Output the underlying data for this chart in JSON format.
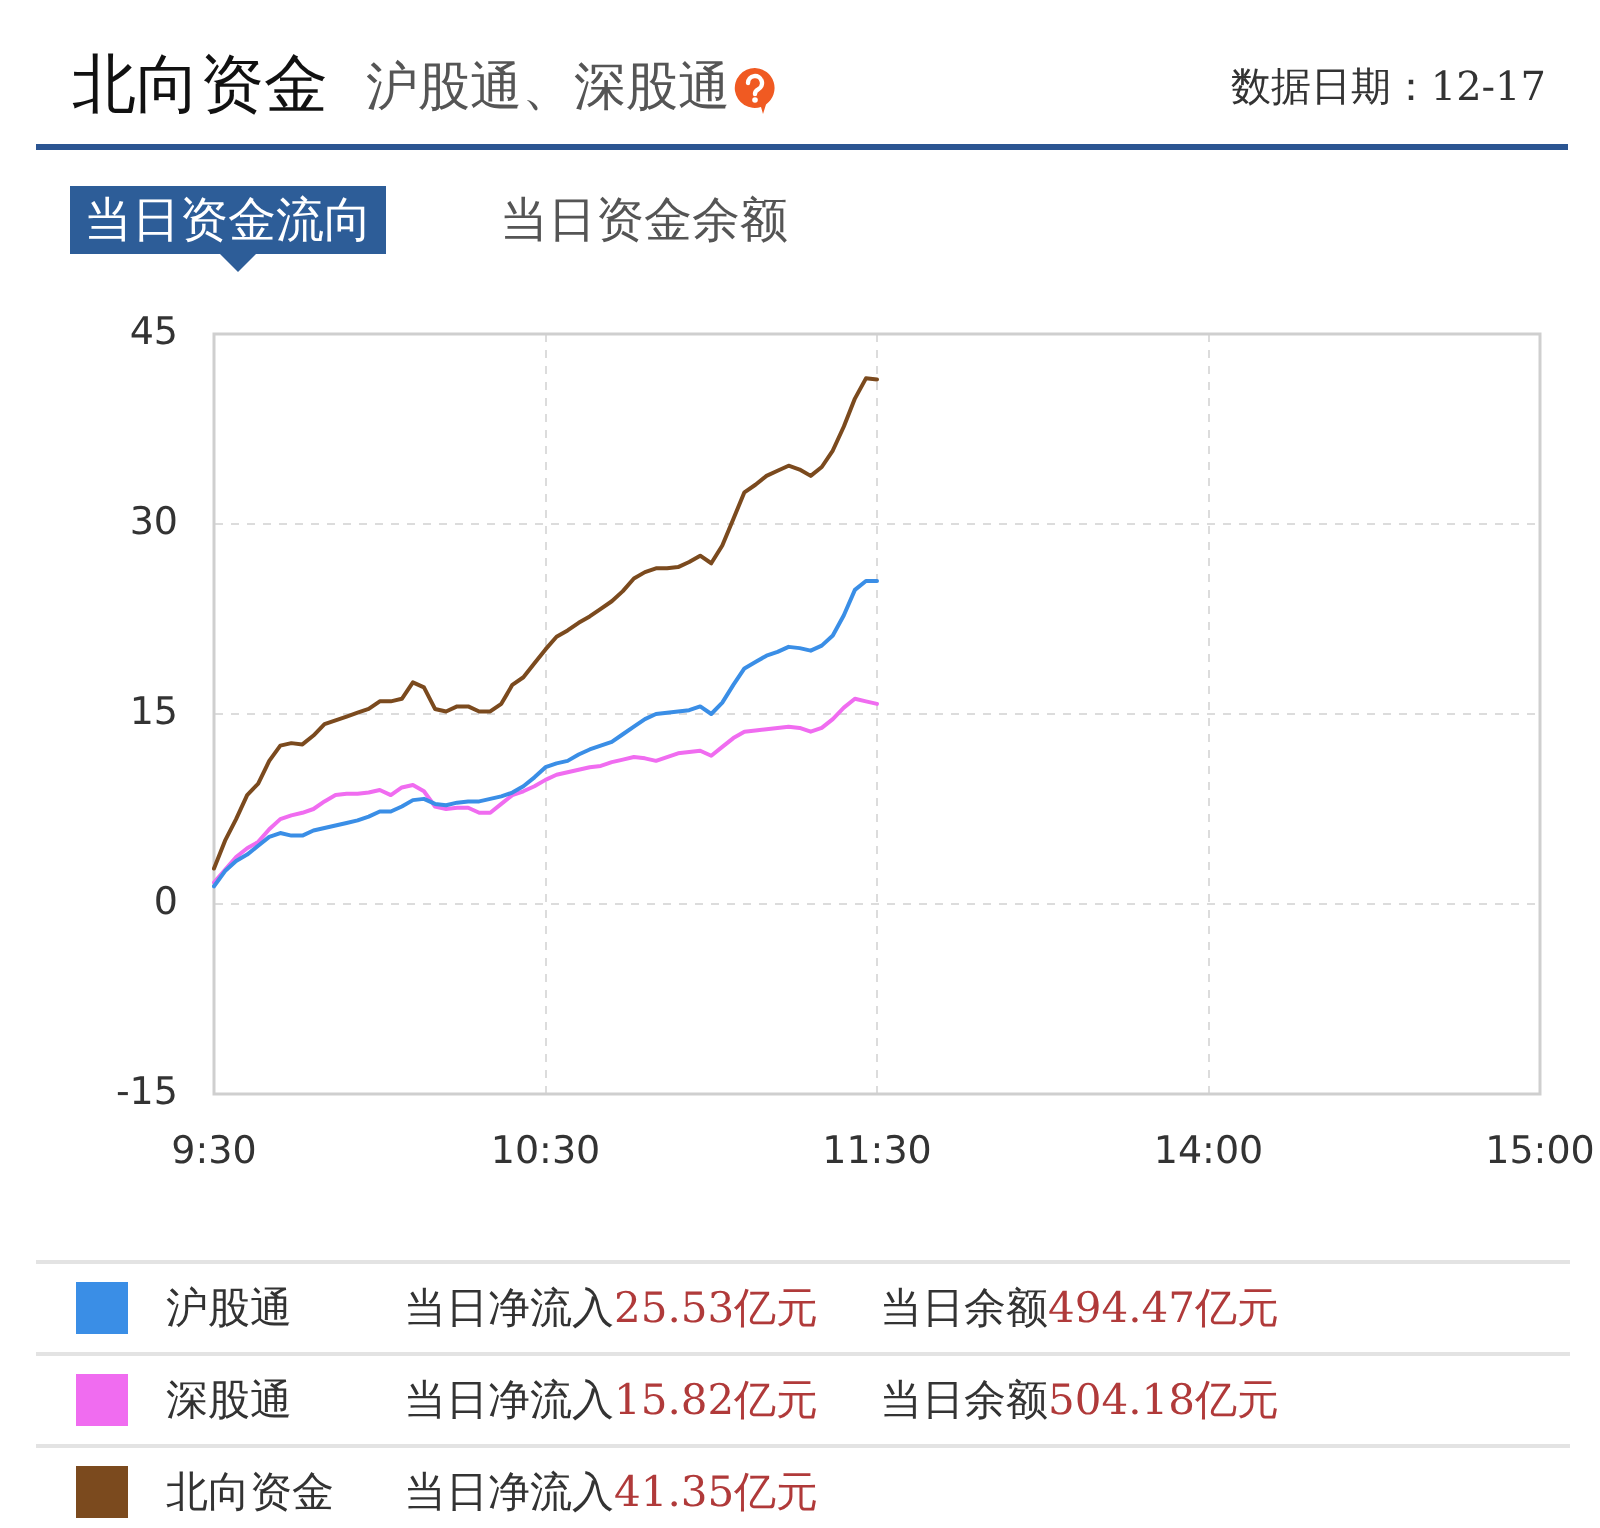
{
  "chart_data": {
    "type": "line",
    "title": "北向资金",
    "subtitle": "沪股通、深股通",
    "annotations": [
      "数据日期：12-17",
      "当日资金流向",
      "当日资金余额",
      "当日净流入25.53亿元",
      "当日余额494.47亿元",
      "当日净流入15.82亿元",
      "当日余额504.18亿元",
      "当日净流入41.35亿元"
    ],
    "categories": [
      "9:30",
      null,
      null,
      null,
      null,
      null,
      null,
      null,
      null,
      null,
      null,
      null,
      null,
      null,
      null,
      null,
      null,
      null,
      null,
      null,
      null,
      null,
      null,
      null,
      null,
      null,
      null,
      null,
      null,
      null,
      "10:30",
      null,
      null,
      null,
      null,
      null,
      null,
      null,
      null,
      null,
      null,
      null,
      null,
      null,
      null,
      null,
      null,
      null,
      null,
      null,
      null,
      null,
      null,
      null,
      null,
      null,
      null,
      null,
      null,
      null,
      "11:30",
      null,
      null,
      null,
      null,
      null,
      null,
      null,
      null,
      null,
      null,
      null,
      null,
      null,
      null,
      null,
      null,
      null,
      null,
      null,
      null,
      null,
      null,
      null,
      null,
      null,
      null,
      null,
      null,
      null,
      "14:00",
      null,
      null,
      null,
      null,
      null,
      null,
      null,
      null,
      null,
      null,
      null,
      null,
      null,
      null,
      null,
      null,
      null,
      null,
      null,
      null,
      null,
      null,
      null,
      null,
      null,
      null,
      null,
      null,
      null,
      "15:00"
    ],
    "ylim": [
      -15,
      45
    ],
    "yticks": [
      -15,
      0,
      15,
      30,
      45
    ],
    "grid": true,
    "legend": "bottom",
    "series": [
      {
        "name": "沪股通",
        "color": "#3a8ee6",
        "values": [
          1.4,
          2.6,
          3.4,
          3.9,
          4.6,
          5.3,
          5.6,
          5.4,
          5.4,
          5.8,
          6.0,
          6.2,
          6.4,
          6.6,
          6.9,
          7.3,
          7.3,
          7.7,
          8.2,
          8.3,
          7.9,
          7.8,
          8.0,
          8.1,
          8.1,
          8.3,
          8.5,
          8.8,
          9.3,
          10.0,
          10.8,
          11.1,
          11.3,
          11.8,
          12.2,
          12.5,
          12.8,
          13.4,
          14.0,
          14.6,
          15.0,
          15.1,
          15.2,
          15.3,
          15.6,
          15.0,
          15.9,
          17.3,
          18.6,
          19.1,
          19.6,
          19.9,
          20.3,
          20.2,
          20.0,
          20.4,
          21.2,
          22.8,
          24.8,
          25.5,
          25.5,
          null,
          null,
          null,
          null,
          null,
          null,
          null,
          null,
          null,
          null,
          null,
          null,
          null,
          null,
          null,
          null,
          null,
          null,
          null,
          null,
          null,
          null,
          null,
          null,
          null,
          null,
          null,
          null,
          null,
          null,
          null,
          null,
          null,
          null,
          null,
          null,
          null,
          null,
          null,
          null,
          null,
          null,
          null,
          null,
          null,
          null,
          null,
          null,
          null,
          null,
          null,
          null,
          null,
          null,
          null,
          null,
          null,
          null,
          null,
          null
        ]
      },
      {
        "name": "深股通",
        "color": "#f06cf0",
        "values": [
          1.7,
          2.7,
          3.7,
          4.4,
          4.9,
          5.9,
          6.7,
          7.0,
          7.2,
          7.5,
          8.1,
          8.6,
          8.7,
          8.7,
          8.8,
          9.0,
          8.6,
          9.2,
          9.4,
          8.9,
          7.7,
          7.5,
          7.6,
          7.6,
          7.2,
          7.2,
          7.9,
          8.6,
          8.9,
          9.3,
          9.8,
          10.2,
          10.4,
          10.6,
          10.8,
          10.9,
          11.2,
          11.4,
          11.6,
          11.5,
          11.3,
          11.6,
          11.9,
          12.0,
          12.1,
          11.7,
          12.4,
          13.1,
          13.6,
          13.7,
          13.8,
          13.9,
          14.0,
          13.9,
          13.6,
          13.9,
          14.6,
          15.5,
          16.2,
          16.0,
          15.8,
          null,
          null,
          null,
          null,
          null,
          null,
          null,
          null,
          null,
          null,
          null,
          null,
          null,
          null,
          null,
          null,
          null,
          null,
          null,
          null,
          null,
          null,
          null,
          null,
          null,
          null,
          null,
          null,
          null,
          null,
          null,
          null,
          null,
          null,
          null,
          null,
          null,
          null,
          null,
          null,
          null,
          null,
          null,
          null,
          null,
          null,
          null,
          null,
          null,
          null,
          null,
          null,
          null,
          null,
          null,
          null,
          null,
          null,
          null,
          null
        ]
      },
      {
        "name": "北向资金",
        "color": "#7b4a1e",
        "values": [
          2.8,
          5.0,
          6.7,
          8.6,
          9.5,
          11.3,
          12.5,
          12.7,
          12.6,
          13.3,
          14.2,
          14.5,
          14.8,
          15.1,
          15.4,
          16.0,
          16.0,
          16.2,
          17.5,
          17.1,
          15.4,
          15.2,
          15.6,
          15.6,
          15.2,
          15.2,
          15.8,
          17.3,
          17.9,
          19.0,
          20.1,
          21.1,
          21.6,
          22.2,
          22.7,
          23.3,
          23.9,
          24.7,
          25.7,
          26.2,
          26.5,
          26.5,
          26.6,
          27.0,
          27.5,
          26.9,
          28.3,
          30.4,
          32.5,
          33.1,
          33.8,
          34.2,
          34.6,
          34.3,
          33.8,
          34.5,
          35.8,
          37.7,
          39.9,
          41.5,
          41.4,
          null,
          null,
          null,
          null,
          null,
          null,
          null,
          null,
          null,
          null,
          null,
          null,
          null,
          null,
          null,
          null,
          null,
          null,
          null,
          null,
          null,
          null,
          null,
          null,
          null,
          null,
          null,
          null,
          null,
          null,
          null,
          null,
          null,
          null,
          null,
          null,
          null,
          null,
          null,
          null,
          null,
          null,
          null,
          null,
          null,
          null,
          null,
          null,
          null,
          null,
          null,
          null,
          null,
          null,
          null,
          null,
          null,
          null,
          null,
          null
        ]
      }
    ]
  }
}
